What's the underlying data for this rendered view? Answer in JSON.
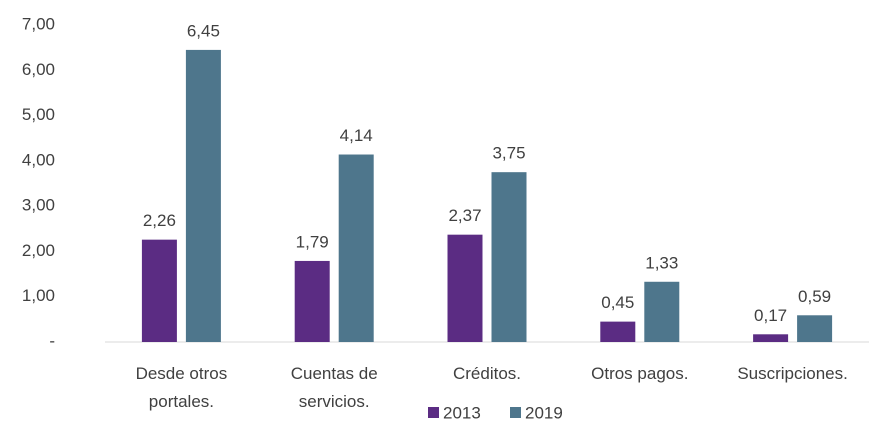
{
  "chart_data": {
    "type": "bar",
    "categories": [
      "Desde otros portales.",
      "Cuentas de servicios.",
      "Créditos.",
      "Otros pagos.",
      "Suscripciones."
    ],
    "series": [
      {
        "name": "2013",
        "color": "#5b2c83",
        "values": [
          2.26,
          1.79,
          2.37,
          0.45,
          0.17
        ],
        "value_labels": [
          "2,26",
          "1,79",
          "2,37",
          "0,45",
          "0,17"
        ]
      },
      {
        "name": "2019",
        "color": "#4e768c",
        "values": [
          6.45,
          4.14,
          3.75,
          1.33,
          0.59
        ],
        "value_labels": [
          "6,45",
          "4,14",
          "3,75",
          "1,33",
          "0,59"
        ]
      }
    ],
    "ylim": [
      0,
      7
    ],
    "yticks": [
      {
        "value": 0,
        "label": "-"
      },
      {
        "value": 1,
        "label": "1,00"
      },
      {
        "value": 2,
        "label": "2,00"
      },
      {
        "value": 3,
        "label": "3,00"
      },
      {
        "value": 4,
        "label": "4,00"
      },
      {
        "value": 5,
        "label": "5,00"
      },
      {
        "value": 6,
        "label": "6,00"
      },
      {
        "value": 7,
        "label": "7,00"
      }
    ],
    "grid": false,
    "legend": "bottom"
  }
}
